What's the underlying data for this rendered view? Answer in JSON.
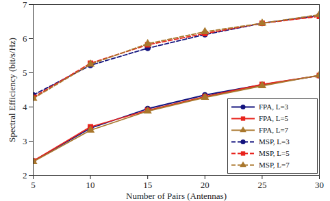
{
  "chart_data": {
    "type": "line",
    "x_label": "Number of Pairs (Antennas)",
    "y_label": "Spectral Efficiency (bit/s/Hz)",
    "x": [
      5,
      10,
      15,
      20,
      25,
      30
    ],
    "xlim": [
      5,
      30
    ],
    "xticks": [
      5,
      10,
      15,
      20,
      25,
      30
    ],
    "ylim": [
      2,
      7
    ],
    "yticks": [
      2,
      3,
      4,
      5,
      6,
      7
    ],
    "grid": false,
    "legend": "lower right",
    "series": [
      {
        "name": "FPA, L=3",
        "color": "#13137e",
        "marker": "circle",
        "line_style": "solid",
        "values": [
          2.42,
          3.38,
          3.95,
          4.35,
          4.65,
          4.92
        ]
      },
      {
        "name": "FPA, L=5",
        "color": "#e8231c",
        "marker": "square",
        "line_style": "solid",
        "values": [
          2.42,
          3.42,
          3.9,
          4.3,
          4.66,
          4.92
        ]
      },
      {
        "name": "FPA, L=7",
        "color": "#a9772c",
        "marker": "triangle",
        "line_style": "solid",
        "values": [
          2.4,
          3.32,
          3.88,
          4.28,
          4.62,
          4.93
        ]
      },
      {
        "name": "MSP, L=3",
        "color": "#13137e",
        "marker": "circle",
        "line_style": "dashed",
        "values": [
          4.35,
          5.22,
          5.72,
          6.12,
          6.45,
          6.68
        ]
      },
      {
        "name": "MSP, L=5",
        "color": "#e8231c",
        "marker": "square",
        "line_style": "dashed",
        "values": [
          4.28,
          5.28,
          5.82,
          6.15,
          6.45,
          6.65
        ]
      },
      {
        "name": "MSP, L=7",
        "color": "#a9772c",
        "marker": "triangle",
        "line_style": "dashed",
        "values": [
          4.25,
          5.25,
          5.85,
          6.2,
          6.45,
          6.7
        ]
      }
    ]
  }
}
